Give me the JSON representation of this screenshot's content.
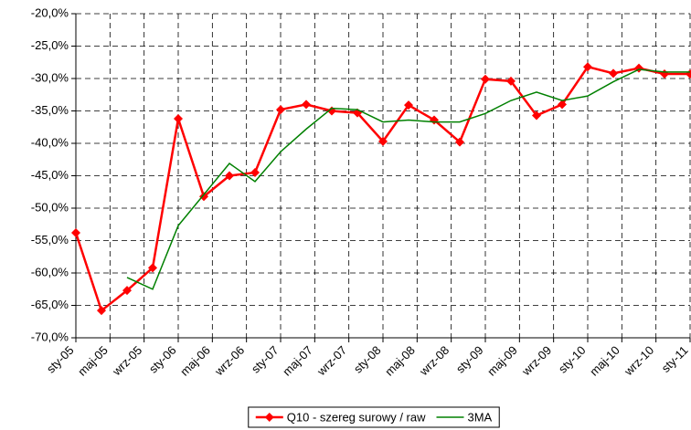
{
  "chart_data": {
    "type": "line",
    "x": [
      "2005-01",
      "2005-04",
      "2005-07",
      "2005-10",
      "2006-01",
      "2006-04",
      "2006-07",
      "2006-10",
      "2007-01",
      "2007-04",
      "2007-07",
      "2007-10",
      "2008-01",
      "2008-04",
      "2008-07",
      "2008-10",
      "2009-01",
      "2009-04",
      "2009-07",
      "2009-10",
      "2010-01",
      "2010-04",
      "2010-07",
      "2010-10",
      "2011-01"
    ],
    "xlim": [
      "2005-01",
      "2011-01"
    ],
    "xticks": [
      {
        "value": "2005-01",
        "label": "sty-05"
      },
      {
        "value": "2005-05",
        "label": "maj-05"
      },
      {
        "value": "2005-09",
        "label": "wrz-05"
      },
      {
        "value": "2006-01",
        "label": "sty-06"
      },
      {
        "value": "2006-05",
        "label": "maj-06"
      },
      {
        "value": "2006-09",
        "label": "wrz-06"
      },
      {
        "value": "2007-01",
        "label": "sty-07"
      },
      {
        "value": "2007-05",
        "label": "maj-07"
      },
      {
        "value": "2007-09",
        "label": "wrz-07"
      },
      {
        "value": "2008-01",
        "label": "sty-08"
      },
      {
        "value": "2008-05",
        "label": "maj-08"
      },
      {
        "value": "2008-09",
        "label": "wrz-08"
      },
      {
        "value": "2009-01",
        "label": "sty-09"
      },
      {
        "value": "2009-05",
        "label": "maj-09"
      },
      {
        "value": "2009-09",
        "label": "wrz-09"
      },
      {
        "value": "2010-01",
        "label": "sty-10"
      },
      {
        "value": "2010-05",
        "label": "maj-10"
      },
      {
        "value": "2010-09",
        "label": "wrz-10"
      },
      {
        "value": "2011-01",
        "label": "sty-11"
      }
    ],
    "ylim": [
      -70,
      -20
    ],
    "yticks": [
      {
        "value": -70,
        "label": "-70,0%"
      },
      {
        "value": -65,
        "label": "-65,0%"
      },
      {
        "value": -60,
        "label": "-60,0%"
      },
      {
        "value": -55,
        "label": "-55,0%"
      },
      {
        "value": -50,
        "label": "-50,0%"
      },
      {
        "value": -45,
        "label": "-45,0%"
      },
      {
        "value": -40,
        "label": "-40,0%"
      },
      {
        "value": -35,
        "label": "-35,0%"
      },
      {
        "value": -30,
        "label": "-30,0%"
      },
      {
        "value": -25,
        "label": "-25,0%"
      },
      {
        "value": -20,
        "label": "-20,0%"
      }
    ],
    "grid": true,
    "legend": "bottom",
    "series": [
      {
        "name": "Q10 - szereg surowy / raw",
        "color": "#ff0000",
        "marker": "diamond",
        "values": [
          -53.8,
          -65.8,
          -62.7,
          -59.2,
          -36.2,
          -48.2,
          -45.0,
          -44.5,
          -34.8,
          -34.0,
          -35.0,
          -35.3,
          -39.7,
          -34.1,
          -36.4,
          -39.8,
          -30.1,
          -30.4,
          -35.7,
          -34.0,
          -28.2,
          -29.2,
          -28.4,
          -29.3,
          -29.3
        ]
      },
      {
        "name": "3MA",
        "color": "#008000",
        "values": [
          null,
          null,
          -60.7,
          -62.5,
          -52.7,
          -47.9,
          -43.1,
          -45.9,
          -41.3,
          -37.8,
          -34.6,
          -34.8,
          -36.7,
          -36.4,
          -36.7,
          -36.7,
          -35.4,
          -33.4,
          -32.1,
          -33.4,
          -32.7,
          -30.5,
          -28.6,
          -29.0,
          -29.0
        ]
      }
    ]
  }
}
